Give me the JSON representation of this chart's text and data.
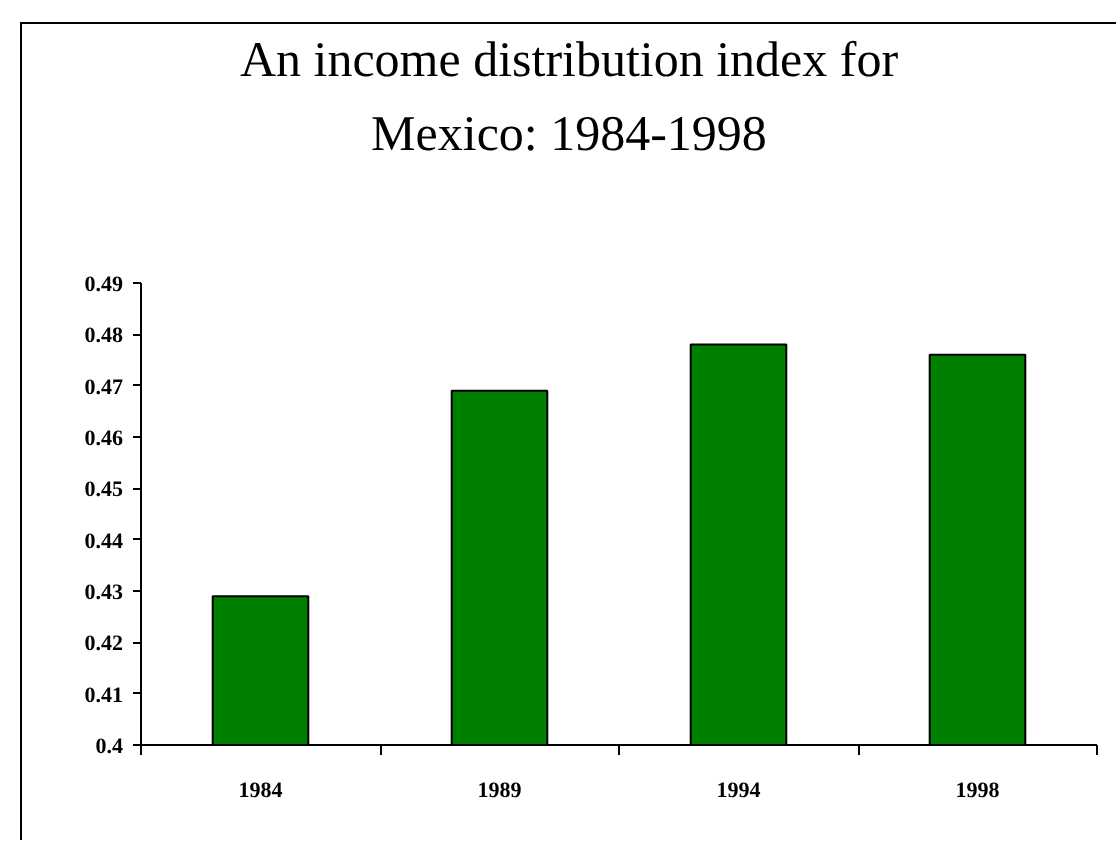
{
  "chart_data": {
    "type": "bar",
    "title": "An income distribution index for Mexico: 1984-1998",
    "categories": [
      "1984",
      "1989",
      "1994",
      "1998"
    ],
    "values": [
      0.429,
      0.469,
      0.478,
      0.476
    ],
    "color": "#008000",
    "ylim": [
      0.4,
      0.49
    ],
    "yticks": [
      0.4,
      0.41,
      0.42,
      0.43,
      0.44,
      0.45,
      0.46,
      0.47,
      0.48,
      0.49
    ],
    "grid": false
  }
}
